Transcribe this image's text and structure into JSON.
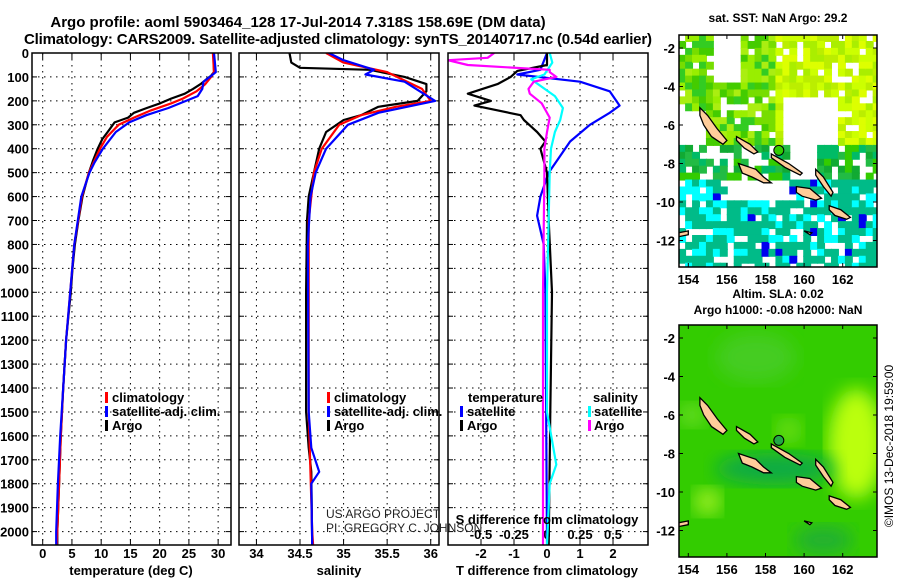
{
  "title": {
    "line1": "Argo profile: aoml 5903464_128 17-Jul-2014 7.318S 158.69E (DM data)",
    "line2": "Climatology: CARS2009. Satellite-adjusted climatology: synTS_20140717.nc (0.54d earlier)"
  },
  "depth_ticks": [
    "0",
    "100",
    "200",
    "300",
    "400",
    "500",
    "600",
    "700",
    "800",
    "900",
    "1000",
    "1100",
    "1200",
    "1300",
    "1400",
    "1500",
    "1600",
    "1700",
    "1800",
    "1900",
    "2000"
  ],
  "credits": {
    "line1": "US ARGO PROJECT",
    "line2": "PI: GREGORY C. JOHNSON"
  },
  "chart_data": [
    {
      "type": "line",
      "name": "temperature",
      "xlabel": "temperature (deg C)",
      "ylabel": "depth",
      "xticks": [
        "0",
        "5",
        "10",
        "15",
        "20",
        "25",
        "30"
      ],
      "xlim": [
        -1.83,
        32.2
      ],
      "ylim": [
        2056,
        0
      ],
      "grid": true,
      "legend": [
        "climatology",
        "satellite-adj. clim.",
        "Argo"
      ],
      "series": [
        {
          "name": "Argo",
          "color": "#000000",
          "points": [
            [
              0,
              29.2
            ],
            [
              80,
              29.3
            ],
            [
              95,
              28.8
            ],
            [
              110,
              28
            ],
            [
              130,
              27
            ],
            [
              150,
              25.7
            ],
            [
              170,
              24.3
            ],
            [
              190,
              22
            ],
            [
              210,
              20.1
            ],
            [
              230,
              17.8
            ],
            [
              250,
              15.6
            ],
            [
              270,
              14.6
            ],
            [
              290,
              12.3
            ],
            [
              320,
              11.4
            ],
            [
              360,
              10.2
            ],
            [
              400,
              9.4
            ],
            [
              450,
              8.6
            ],
            [
              500,
              7.9
            ],
            [
              600,
              6.8
            ],
            [
              700,
              6.1
            ],
            [
              800,
              5.5
            ],
            [
              900,
              5.1
            ],
            [
              1000,
              4.8
            ],
            [
              1100,
              4.4
            ],
            [
              1200,
              4.0
            ],
            [
              1400,
              3.5
            ],
            [
              1600,
              3.1
            ],
            [
              1800,
              2.8
            ],
            [
              2000,
              2.5
            ],
            [
              2056,
              2.5
            ]
          ]
        },
        {
          "name": "climatology",
          "color": "#ff0000",
          "points": [
            [
              0,
              29.1
            ],
            [
              80,
              29.3
            ],
            [
              100,
              28.8
            ],
            [
              130,
              27.8
            ],
            [
              160,
              26.3
            ],
            [
              190,
              24
            ],
            [
              210,
              22
            ],
            [
              240,
              18.5
            ],
            [
              270,
              15.6
            ],
            [
              300,
              13
            ],
            [
              350,
              11
            ],
            [
              400,
              9.8
            ],
            [
              500,
              7.9
            ],
            [
              600,
              6.7
            ],
            [
              800,
              5.4
            ],
            [
              1000,
              4.7
            ],
            [
              1200,
              4.0
            ],
            [
              1400,
              3.5
            ],
            [
              1600,
              3.1
            ],
            [
              1800,
              2.8
            ],
            [
              2000,
              2.5
            ],
            [
              2056,
              2.4
            ]
          ]
        },
        {
          "name": "satellite-adj. clim.",
          "color": "#0000ff",
          "points": [
            [
              0,
              29.3
            ],
            [
              80,
              29.6
            ],
            [
              100,
              28.6
            ],
            [
              120,
              27.5
            ],
            [
              150,
              27.3
            ],
            [
              180,
              26.5
            ],
            [
              200,
              24.5
            ],
            [
              230,
              21.5
            ],
            [
              260,
              17.7
            ],
            [
              290,
              14.8
            ],
            [
              330,
              12.5
            ],
            [
              400,
              10.3
            ],
            [
              460,
              8.8
            ],
            [
              500,
              8
            ],
            [
              600,
              6.6
            ],
            [
              800,
              5.4
            ],
            [
              1000,
              4.7
            ],
            [
              1200,
              4.0
            ],
            [
              1400,
              3.5
            ],
            [
              1600,
              3.0
            ],
            [
              1800,
              2.6
            ],
            [
              2000,
              2.3
            ],
            [
              2056,
              2.3
            ]
          ]
        }
      ]
    },
    {
      "type": "line",
      "name": "salinity",
      "xlabel": "salinity",
      "ylabel": "depth",
      "xticks": [
        "34",
        "34.5",
        "35",
        "35.5",
        "36"
      ],
      "xlim": [
        33.8,
        36.095
      ],
      "ylim": [
        2056,
        0
      ],
      "grid": true,
      "legend": [
        "climatology",
        "satellite-adj. clim.",
        "Argo"
      ],
      "series": [
        {
          "name": "Argo",
          "color": "#000000",
          "points": [
            [
              0,
              34.38
            ],
            [
              40,
              34.4
            ],
            [
              62,
              34.5
            ],
            [
              70,
              35.3
            ],
            [
              100,
              35.7
            ],
            [
              130,
              35.95
            ],
            [
              160,
              35.95
            ],
            [
              200,
              35.85
            ],
            [
              225,
              35.4
            ],
            [
              260,
              35.2
            ],
            [
              280,
              35.0
            ],
            [
              330,
              34.8
            ],
            [
              400,
              34.72
            ],
            [
              500,
              34.66
            ],
            [
              600,
              34.6
            ],
            [
              700,
              34.58
            ],
            [
              1000,
              34.57
            ],
            [
              1500,
              34.57
            ],
            [
              1650,
              34.6
            ],
            [
              1750,
              34.63
            ],
            [
              2056,
              34.64
            ]
          ]
        },
        {
          "name": "climatology",
          "color": "#ff0000",
          "points": [
            [
              0,
              34.8
            ],
            [
              40,
              35.0
            ],
            [
              80,
              35.5
            ],
            [
              150,
              35.9
            ],
            [
              200,
              36.0
            ],
            [
              225,
              35.6
            ],
            [
              260,
              35.2
            ],
            [
              300,
              34.95
            ],
            [
              400,
              34.75
            ],
            [
              500,
              34.66
            ],
            [
              700,
              34.6
            ],
            [
              1000,
              34.6
            ],
            [
              1500,
              34.6
            ],
            [
              2000,
              34.64
            ],
            [
              2056,
              34.65
            ]
          ]
        },
        {
          "name": "satellite-adj. clim.",
          "color": "#0000ff",
          "points": [
            [
              0,
              34.83
            ],
            [
              30,
              35.0
            ],
            [
              70,
              35.35
            ],
            [
              90,
              35.25
            ],
            [
              120,
              35.7
            ],
            [
              200,
              36.05
            ],
            [
              250,
              35.4
            ],
            [
              300,
              35.05
            ],
            [
              400,
              34.8
            ],
            [
              500,
              34.68
            ],
            [
              600,
              34.62
            ],
            [
              800,
              34.59
            ],
            [
              1500,
              34.6
            ],
            [
              1650,
              34.63
            ],
            [
              1750,
              34.72
            ],
            [
              1800,
              34.63
            ],
            [
              2056,
              34.64
            ]
          ]
        }
      ]
    },
    {
      "type": "line",
      "name": "difference-from-climatology",
      "xlabel": "T difference from climatology",
      "xlabel_top": "S difference from climatology",
      "ylabel": "depth",
      "xticks": [
        "-2",
        "-1",
        "0",
        "1",
        "2"
      ],
      "xticks_s": [
        "-0.5",
        "-0.25",
        "0",
        "0.25",
        "0.5"
      ],
      "xlim": [
        -3.0,
        3.06
      ],
      "xlim_s": [
        -0.75,
        0.765
      ],
      "ylim": [
        2056,
        0
      ],
      "grid": true,
      "legend": {
        "temperature_title": "temperature",
        "salinity_title": "salinity",
        "t_satellite": "satellite",
        "t_argo": "Argo",
        "s_satellite": "satellite",
        "s_argo": "Argo"
      },
      "series": [
        {
          "name": "T satellite",
          "var": "T",
          "color": "#0000ff",
          "points": [
            [
              0,
              0
            ],
            [
              70,
              -0.2
            ],
            [
              90,
              -0.9
            ],
            [
              120,
              1.0
            ],
            [
              160,
              1.9
            ],
            [
              220,
              2.2
            ],
            [
              250,
              1.9
            ],
            [
              300,
              1.3
            ],
            [
              370,
              0.7
            ],
            [
              450,
              0.3
            ],
            [
              500,
              0.05
            ],
            [
              600,
              -0.2
            ],
            [
              680,
              -0.3
            ],
            [
              800,
              -0.1
            ],
            [
              1000,
              -0.05
            ],
            [
              2056,
              0
            ]
          ]
        },
        {
          "name": "T Argo",
          "var": "T",
          "color": "#000000",
          "points": [
            [
              0,
              0
            ],
            [
              50,
              0
            ],
            [
              75,
              -0.9
            ],
            [
              100,
              -1.1
            ],
            [
              130,
              -1.5
            ],
            [
              170,
              -2.4
            ],
            [
              200,
              -1.7
            ],
            [
              220,
              -2.2
            ],
            [
              260,
              -0.8
            ],
            [
              280,
              -0.7
            ],
            [
              330,
              -0.3
            ],
            [
              370,
              -0.05
            ],
            [
              400,
              -0.2
            ],
            [
              500,
              0
            ],
            [
              700,
              0.05
            ],
            [
              1000,
              0.15
            ],
            [
              1500,
              0.1
            ],
            [
              2056,
              0.05
            ]
          ]
        },
        {
          "name": "S satellite",
          "var": "S",
          "color": "#00ffff",
          "points": [
            [
              0,
              0.02
            ],
            [
              40,
              0.04
            ],
            [
              90,
              -0.02
            ],
            [
              110,
              -0.12
            ],
            [
              180,
              0.06
            ],
            [
              230,
              0.12
            ],
            [
              280,
              0.1
            ],
            [
              330,
              0.06
            ],
            [
              400,
              0.03
            ],
            [
              500,
              0.02
            ],
            [
              1000,
              0
            ],
            [
              1500,
              0
            ],
            [
              1720,
              0.07
            ],
            [
              1800,
              0.02
            ],
            [
              2056,
              0
            ]
          ]
        },
        {
          "name": "S Argo",
          "var": "S",
          "color": "#ff00ff",
          "points": [
            [
              0,
              -0.4
            ],
            [
              20,
              -0.45
            ],
            [
              30,
              -0.75
            ],
            [
              50,
              -0.6
            ],
            [
              70,
              0.02
            ],
            [
              80,
              0.02
            ],
            [
              100,
              0.07
            ],
            [
              120,
              -0.1
            ],
            [
              150,
              -0.14
            ],
            [
              170,
              -0.13
            ],
            [
              210,
              -0.04
            ],
            [
              270,
              0.02
            ],
            [
              330,
              0
            ],
            [
              400,
              -0.02
            ],
            [
              500,
              -0.02
            ],
            [
              1000,
              -0.03
            ],
            [
              2056,
              -0.03
            ]
          ]
        }
      ]
    }
  ],
  "maps": [
    {
      "title_lines": [
        "sat. SST: NaN Argo: 29.2"
      ],
      "type": "sst",
      "lon_ticks": [
        "154",
        "156",
        "158",
        "160",
        "162"
      ],
      "lat_ticks": [
        "-2",
        "-4",
        "-6",
        "-8",
        "-10",
        "-12"
      ]
    },
    {
      "title_lines": [
        "Altim. SLA: 0.02",
        "Argo h1000: -0.08 h2000: NaN"
      ],
      "type": "sla",
      "lon_ticks": [
        "154",
        "156",
        "158",
        "160",
        "162"
      ],
      "lat_ticks": [
        "-2",
        "-4",
        "-6",
        "-8",
        "-10",
        "-12"
      ]
    }
  ],
  "argo_position": {
    "lon": 158.69,
    "lat": -7.318
  },
  "stamp": "©IMOS 13-Dec-2018 19:59:00"
}
